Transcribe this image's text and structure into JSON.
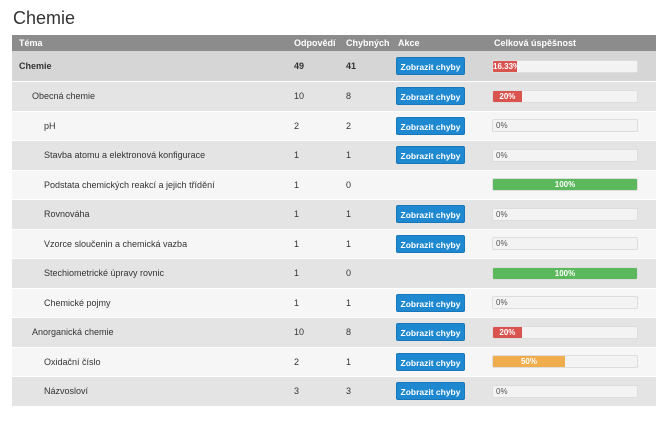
{
  "page": {
    "title": "Chemie"
  },
  "colors": {
    "red": "#d9534f",
    "green": "#5cb85c",
    "orange": "#f0ad4e",
    "button": "#1e88d0"
  },
  "table": {
    "headers": {
      "topic": "Téma",
      "answers": "Odpovědí",
      "wrong": "Chybných",
      "action": "Akce",
      "success": "Celková úspěšnost"
    },
    "rows": [
      {
        "topic": "Chemie",
        "level": 0,
        "answers": "49",
        "wrong": "41",
        "button": "Zobrazit chyby",
        "success_label": "16.33%",
        "success_pct": 16.33,
        "color": "red"
      },
      {
        "topic": "Obecná chemie",
        "level": 1,
        "answers": "10",
        "wrong": "8",
        "button": "Zobrazit chyby",
        "success_label": "20%",
        "success_pct": 20,
        "color": "red"
      },
      {
        "topic": "pH",
        "level": 2,
        "answers": "2",
        "wrong": "2",
        "button": "Zobrazit chyby",
        "success_label": "0%",
        "success_pct": 0,
        "color": "red"
      },
      {
        "topic": "Stavba atomu a elektronová konfigurace",
        "level": 2,
        "answers": "1",
        "wrong": "1",
        "button": "Zobrazit chyby",
        "success_label": "0%",
        "success_pct": 0,
        "color": "red"
      },
      {
        "topic": "Podstata chemických reakcí a jejich třídění",
        "level": 2,
        "answers": "1",
        "wrong": "0",
        "button": "",
        "success_label": "100%",
        "success_pct": 100,
        "color": "green"
      },
      {
        "topic": "Rovnováha",
        "level": 2,
        "answers": "1",
        "wrong": "1",
        "button": "Zobrazit chyby",
        "success_label": "0%",
        "success_pct": 0,
        "color": "red"
      },
      {
        "topic": "Vzorce sloučenin a chemická vazba",
        "level": 2,
        "answers": "1",
        "wrong": "1",
        "button": "Zobrazit chyby",
        "success_label": "0%",
        "success_pct": 0,
        "color": "red"
      },
      {
        "topic": "Stechiometrické úpravy rovnic",
        "level": 2,
        "answers": "1",
        "wrong": "0",
        "button": "",
        "success_label": "100%",
        "success_pct": 100,
        "color": "green"
      },
      {
        "topic": "Chemické pojmy",
        "level": 2,
        "answers": "1",
        "wrong": "1",
        "button": "Zobrazit chyby",
        "success_label": "0%",
        "success_pct": 0,
        "color": "red"
      },
      {
        "topic": "Anorganická chemie",
        "level": 1,
        "answers": "10",
        "wrong": "8",
        "button": "Zobrazit chyby",
        "success_label": "20%",
        "success_pct": 20,
        "color": "red"
      },
      {
        "topic": "Oxidační číslo",
        "level": 2,
        "answers": "2",
        "wrong": "1",
        "button": "Zobrazit chyby",
        "success_label": "50%",
        "success_pct": 50,
        "color": "orange"
      },
      {
        "topic": "Názvosloví",
        "level": 2,
        "answers": "3",
        "wrong": "3",
        "button": "Zobrazit chyby",
        "success_label": "0%",
        "success_pct": 0,
        "color": "red"
      }
    ]
  }
}
